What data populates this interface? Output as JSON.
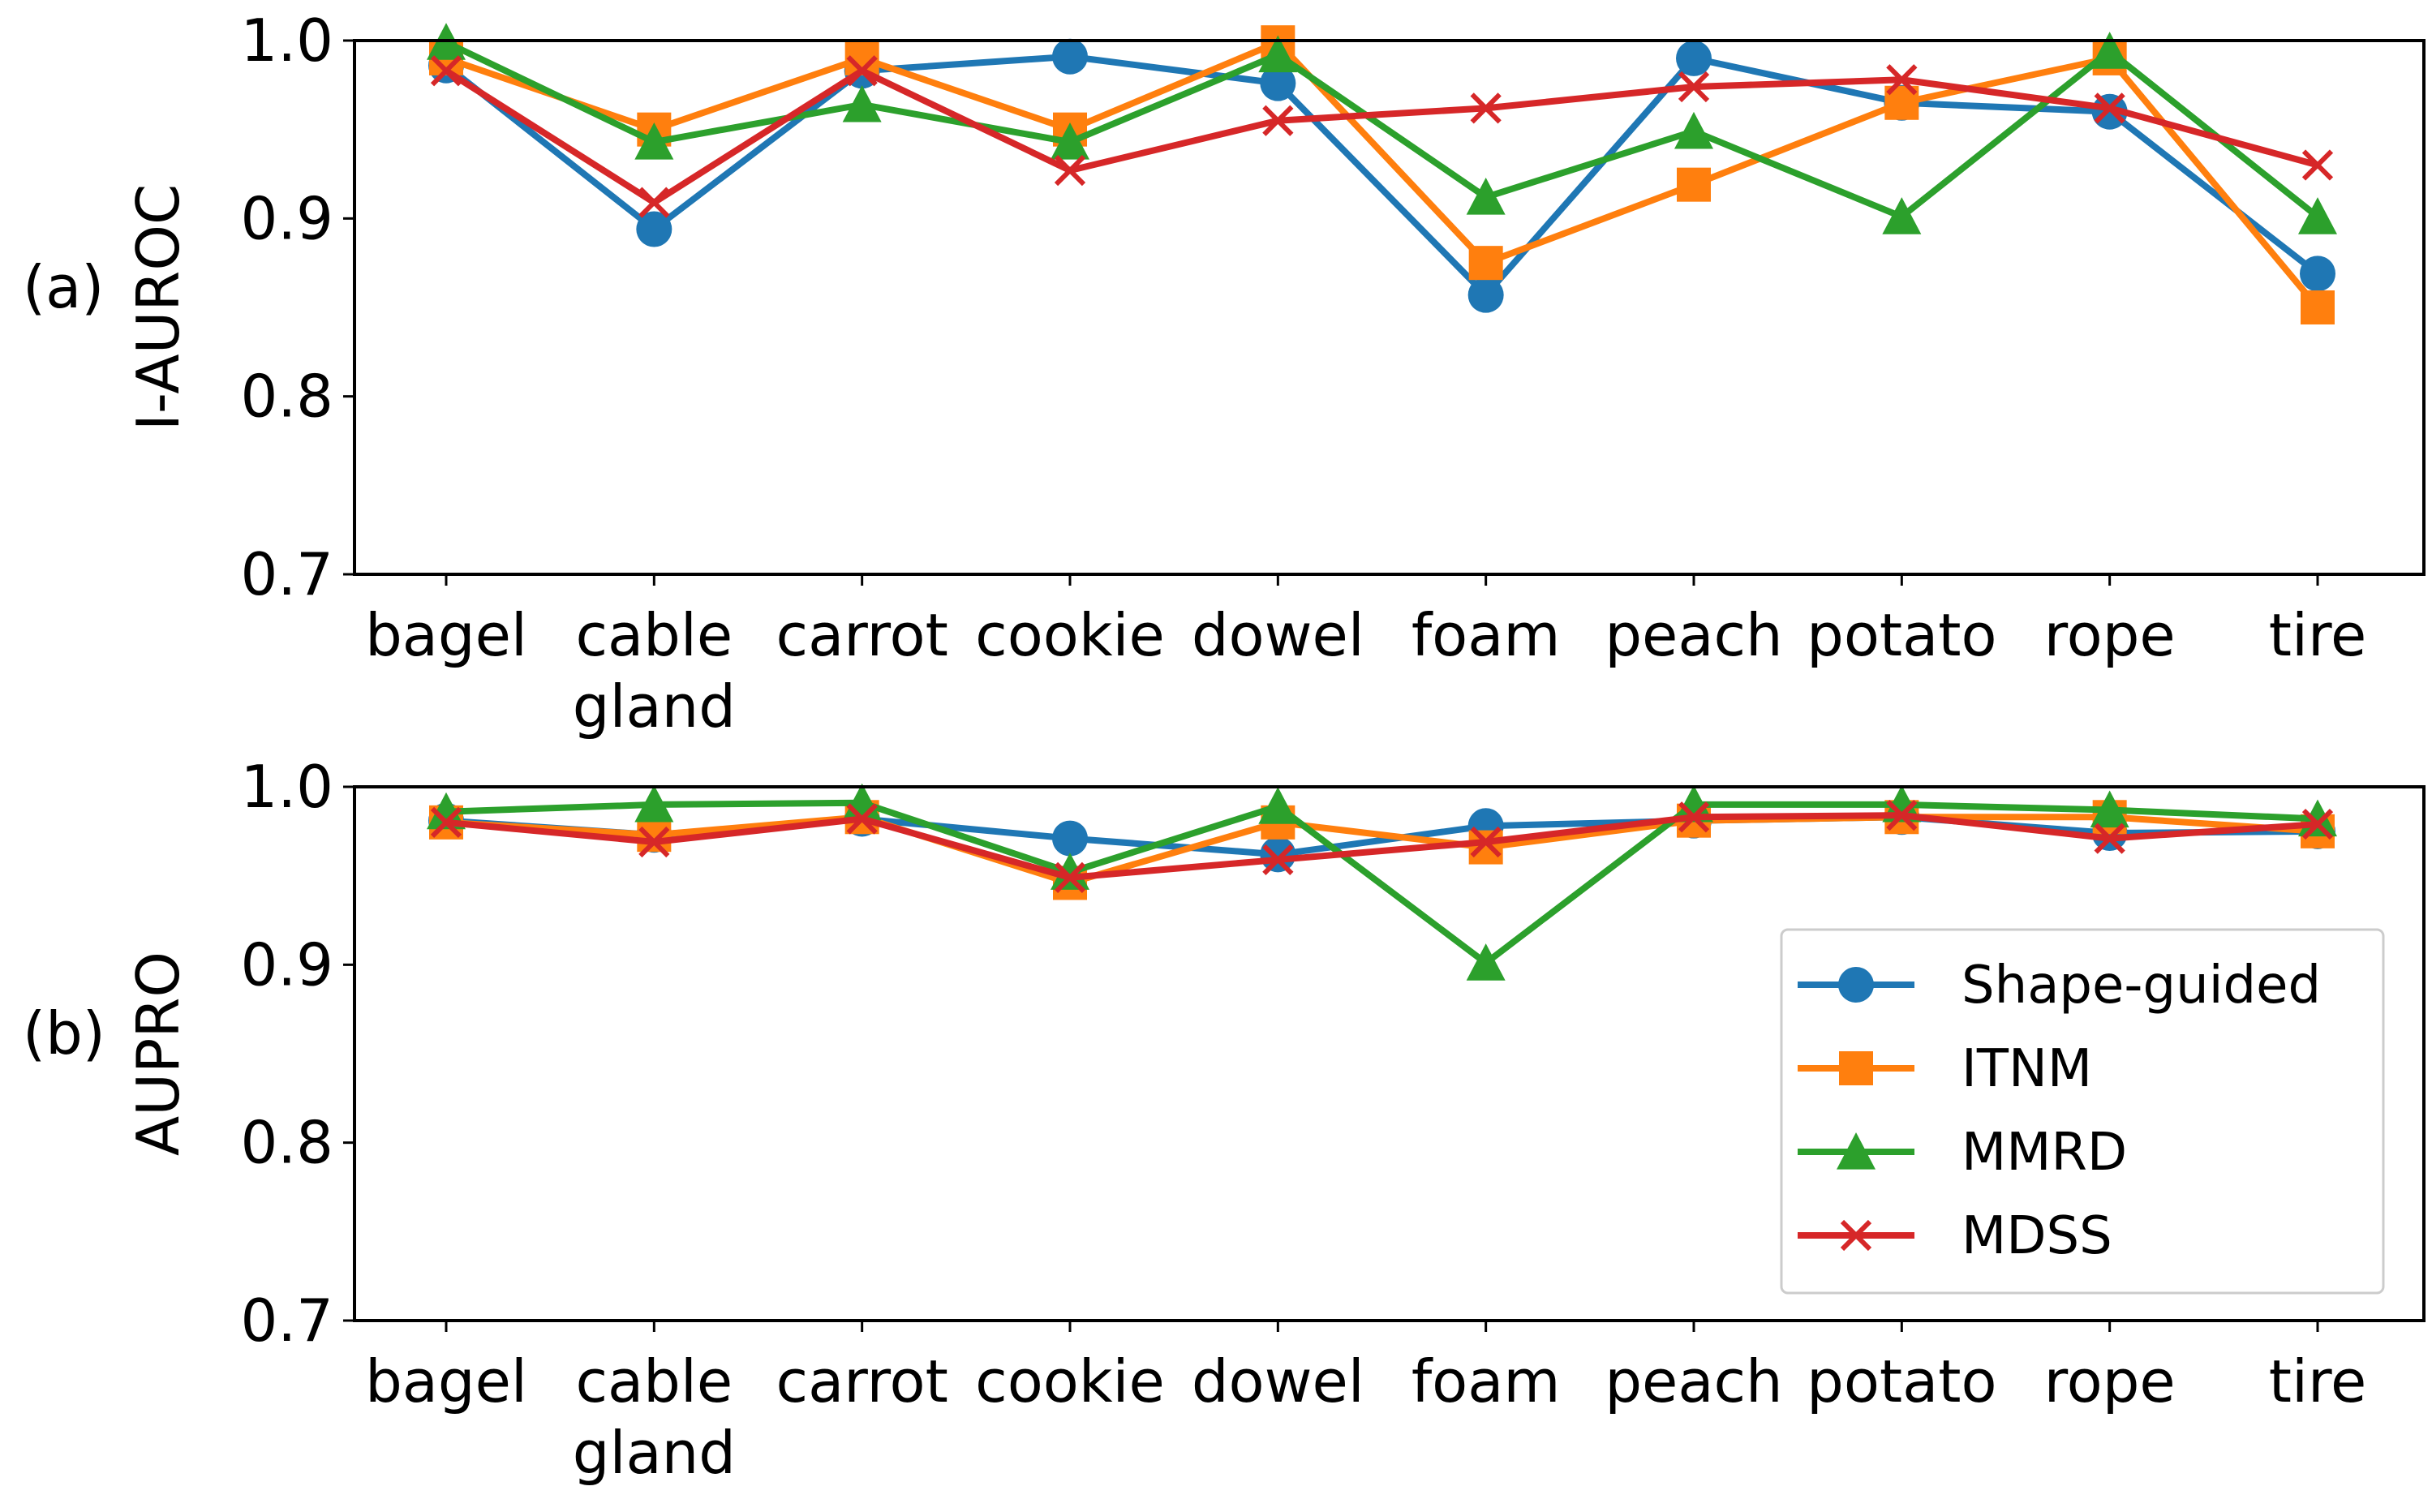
{
  "chart_data": [
    {
      "type": "line",
      "panel_label": "(a)",
      "ylabel": "I-AUROC",
      "ylim": [
        0.7,
        1.0
      ],
      "yticks": [
        "0.7",
        "0.8",
        "0.9",
        "1.0"
      ],
      "categories": [
        "bagel",
        "cable\ngland",
        "carrot",
        "cookie",
        "dowel",
        "foam",
        "peach",
        "potato",
        "rope",
        "tire"
      ],
      "series": [
        {
          "name": "Shape-guided",
          "values": [
            0.986,
            0.894,
            0.983,
            0.991,
            0.976,
            0.857,
            0.99,
            0.965,
            0.96,
            0.869
          ]
        },
        {
          "name": "ITNM",
          "values": [
            0.99,
            0.95,
            0.99,
            0.95,
            0.999,
            0.875,
            0.919,
            0.965,
            0.99,
            0.85
          ]
        },
        {
          "name": "MMRD",
          "values": [
            0.999,
            0.943,
            0.964,
            0.943,
            0.992,
            0.912,
            0.949,
            0.901,
            0.994,
            0.901
          ]
        },
        {
          "name": "MDSS",
          "values": [
            0.983,
            0.909,
            0.983,
            0.927,
            0.955,
            0.962,
            0.974,
            0.978,
            0.962,
            0.93
          ]
        }
      ]
    },
    {
      "type": "line",
      "panel_label": "(b)",
      "ylabel": "AUPRO",
      "ylim": [
        0.7,
        1.0
      ],
      "yticks": [
        "0.7",
        "0.8",
        "0.9",
        "1.0"
      ],
      "categories": [
        "bagel",
        "cable\ngland",
        "carrot",
        "cookie",
        "dowel",
        "foam",
        "peach",
        "potato",
        "rope",
        "tire"
      ],
      "series": [
        {
          "name": "Shape-guided",
          "values": [
            0.981,
            0.973,
            0.982,
            0.971,
            0.962,
            0.978,
            0.981,
            0.983,
            0.974,
            0.975
          ]
        },
        {
          "name": "ITNM",
          "values": [
            0.98,
            0.973,
            0.983,
            0.946,
            0.98,
            0.966,
            0.981,
            0.983,
            0.983,
            0.975
          ]
        },
        {
          "name": "MMRD",
          "values": [
            0.986,
            0.99,
            0.991,
            0.952,
            0.989,
            0.901,
            0.99,
            0.99,
            0.987,
            0.982
          ]
        },
        {
          "name": "MDSS",
          "values": [
            0.98,
            0.969,
            0.982,
            0.949,
            0.959,
            0.969,
            0.983,
            0.984,
            0.971,
            0.979
          ]
        }
      ]
    }
  ],
  "legend": {
    "placement": "lower-right",
    "items": [
      {
        "name": "Shape-guided",
        "marker": "circle",
        "color": "#1f77b4"
      },
      {
        "name": "ITNM",
        "marker": "square",
        "color": "#ff7f0e"
      },
      {
        "name": "MMRD",
        "marker": "triangle",
        "color": "#2ca02c"
      },
      {
        "name": "MDSS",
        "marker": "x",
        "color": "#d62728"
      }
    ]
  }
}
